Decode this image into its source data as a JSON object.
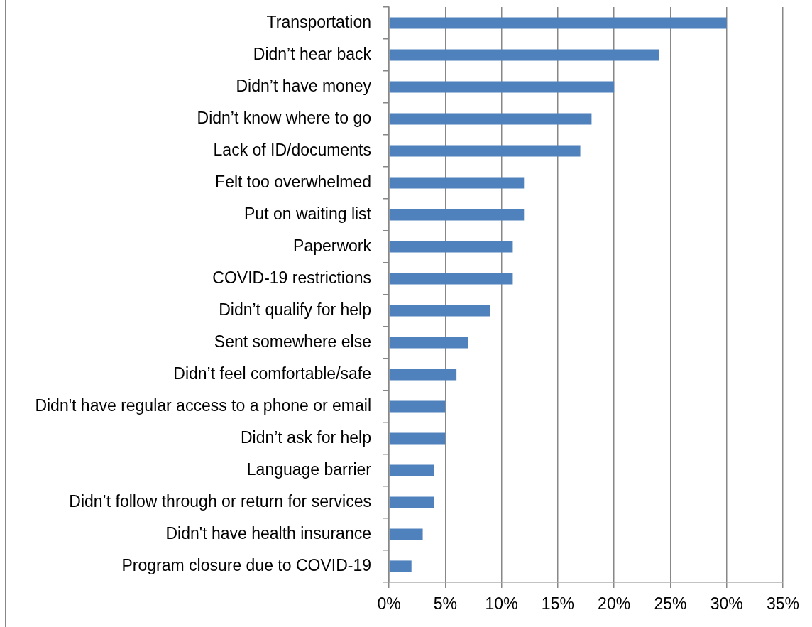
{
  "chart_data": {
    "type": "bar",
    "orientation": "horizontal",
    "categories": [
      "Transportation",
      "Didn’t hear back",
      "Didn’t have money",
      "Didn’t know where to go",
      "Lack of ID/documents",
      "Felt too overwhelmed",
      "Put on waiting list",
      "Paperwork",
      "COVID-19 restrictions",
      "Didn’t qualify for help",
      "Sent somewhere else",
      "Didn’t feel comfortable/safe",
      "Didn't have regular access to a phone or email",
      "Didn’t ask for help",
      "Language barrier",
      "Didn’t follow through or return for services",
      "Didn't have health insurance",
      "Program closure due to COVID-19"
    ],
    "values": [
      30,
      24,
      20,
      18,
      17,
      12,
      12,
      11,
      11,
      9,
      7,
      6,
      5,
      5,
      4,
      4,
      3,
      2
    ],
    "color": "#4f81bd",
    "xlim": [
      0,
      35
    ],
    "xticks": [
      {
        "value": 0,
        "label": "0%"
      },
      {
        "value": 5,
        "label": "5%"
      },
      {
        "value": 10,
        "label": "10%"
      },
      {
        "value": 15,
        "label": "15%"
      },
      {
        "value": 20,
        "label": "20%"
      },
      {
        "value": 25,
        "label": "25%"
      },
      {
        "value": 30,
        "label": "30%"
      },
      {
        "value": 35,
        "label": "35%"
      }
    ],
    "grid": "x",
    "legend": false
  }
}
